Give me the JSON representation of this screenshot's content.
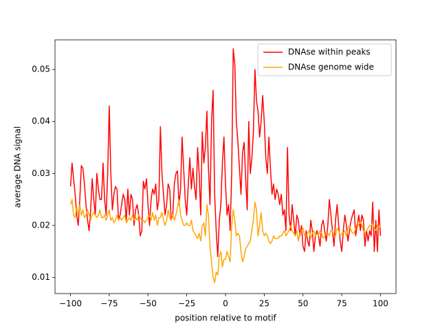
{
  "chart_data": {
    "type": "line",
    "x_label": "position relative to motif",
    "y_label": "average DNA signal",
    "xlim": [
      -110,
      110
    ],
    "ylim": [
      0.0069,
      0.0557
    ],
    "xticks": [
      {
        "value": -100,
        "label": "−100"
      },
      {
        "value": -75,
        "label": "−75"
      },
      {
        "value": -50,
        "label": "−50"
      },
      {
        "value": -25,
        "label": "−25"
      },
      0,
      25,
      50,
      75,
      100
    ],
    "yticks": [
      0.01,
      0.02,
      0.03,
      0.04,
      0.05
    ],
    "legend": "upper right",
    "x": [
      -100,
      -99,
      -98,
      -97,
      -96,
      -95,
      -94,
      -93,
      -92,
      -91,
      -90,
      -89,
      -88,
      -87,
      -86,
      -85,
      -84,
      -83,
      -82,
      -81,
      -80,
      -79,
      -78,
      -77,
      -76,
      -75,
      -74,
      -73,
      -72,
      -71,
      -70,
      -69,
      -68,
      -67,
      -66,
      -65,
      -64,
      -63,
      -62,
      -61,
      -60,
      -59,
      -58,
      -57,
      -56,
      -55,
      -54,
      -53,
      -52,
      -51,
      -50,
      -49,
      -48,
      -47,
      -46,
      -45,
      -44,
      -43,
      -42,
      -41,
      -40,
      -39,
      -38,
      -37,
      -36,
      -35,
      -34,
      -33,
      -32,
      -31,
      -30,
      -29,
      -28,
      -27,
      -26,
      -25,
      -24,
      -23,
      -22,
      -21,
      -20,
      -19,
      -18,
      -17,
      -16,
      -15,
      -14,
      -13,
      -12,
      -11,
      -10,
      -9,
      -8,
      -7,
      -6,
      -5,
      -4,
      -3,
      -2,
      -1,
      0,
      1,
      2,
      3,
      4,
      5,
      6,
      7,
      8,
      9,
      10,
      11,
      12,
      13,
      14,
      15,
      16,
      17,
      18,
      19,
      20,
      21,
      22,
      23,
      24,
      25,
      26,
      27,
      28,
      29,
      30,
      31,
      32,
      33,
      34,
      35,
      36,
      37,
      38,
      39,
      40,
      41,
      42,
      43,
      44,
      45,
      46,
      47,
      48,
      49,
      50,
      51,
      52,
      53,
      54,
      55,
      56,
      57,
      58,
      59,
      60,
      61,
      62,
      63,
      64,
      65,
      66,
      67,
      68,
      69,
      70,
      71,
      72,
      73,
      74,
      75,
      76,
      77,
      78,
      79,
      80,
      81,
      82,
      83,
      84,
      85,
      86,
      87,
      88,
      89,
      90,
      91,
      92,
      93,
      94,
      95,
      96,
      97,
      98,
      99,
      100
    ],
    "series": [
      {
        "name": "DNAse within peaks",
        "color": "#ff0000",
        "values": [
          0.0275,
          0.032,
          0.029,
          0.026,
          0.022,
          0.02,
          0.025,
          0.0315,
          0.031,
          0.028,
          0.024,
          0.021,
          0.019,
          0.023,
          0.029,
          0.025,
          0.022,
          0.03,
          0.027,
          0.025,
          0.025,
          0.032,
          0.025,
          0.022,
          0.03,
          0.043,
          0.03,
          0.023,
          0.026,
          0.0275,
          0.027,
          0.021,
          0.022,
          0.024,
          0.026,
          0.025,
          0.021,
          0.027,
          0.022,
          0.026,
          0.025,
          0.02,
          0.023,
          0.024,
          0.022,
          0.018,
          0.019,
          0.0285,
          0.027,
          0.029,
          0.024,
          0.02,
          0.025,
          0.027,
          0.026,
          0.028,
          0.023,
          0.025,
          0.039,
          0.03,
          0.026,
          0.022,
          0.024,
          0.028,
          0.027,
          0.021,
          0.022,
          0.028,
          0.03,
          0.0305,
          0.024,
          0.027,
          0.037,
          0.031,
          0.025,
          0.022,
          0.028,
          0.033,
          0.027,
          0.031,
          0.0275,
          0.025,
          0.035,
          0.03,
          0.022,
          0.038,
          0.032,
          0.035,
          0.042,
          0.031,
          0.024,
          0.04,
          0.046,
          0.026,
          0.019,
          0.014,
          0.021,
          0.024,
          0.032,
          0.037,
          0.028,
          0.022,
          0.024,
          0.019,
          0.03,
          0.054,
          0.051,
          0.04,
          0.036,
          0.031,
          0.026,
          0.034,
          0.036,
          0.029,
          0.023,
          0.04,
          0.03,
          0.033,
          0.038,
          0.05,
          0.044,
          0.042,
          0.037,
          0.04,
          0.045,
          0.04,
          0.033,
          0.03,
          0.037,
          0.031,
          0.026,
          0.028,
          0.025,
          0.027,
          0.026,
          0.024,
          0.026,
          0.022,
          0.023,
          0.019,
          0.035,
          0.022,
          0.019,
          0.024,
          0.021,
          0.018,
          0.022,
          0.021,
          0.018,
          0.02,
          0.016,
          0.015,
          0.019,
          0.017,
          0.016,
          0.021,
          0.019,
          0.015,
          0.018,
          0.019,
          0.018,
          0.016,
          0.02,
          0.021,
          0.019,
          0.017,
          0.02,
          0.025,
          0.022,
          0.019,
          0.016,
          0.021,
          0.024,
          0.02,
          0.017,
          0.015,
          0.019,
          0.022,
          0.02,
          0.017,
          0.019,
          0.021,
          0.022,
          0.023,
          0.018,
          0.02,
          0.022,
          0.019,
          0.022,
          0.021,
          0.016,
          0.019,
          0.017,
          0.019,
          0.018,
          0.0245,
          0.015,
          0.021,
          0.015,
          0.023,
          0.018
        ]
      },
      {
        "name": "DNAse genome wide",
        "color": "#ffa500",
        "values": [
          0.024,
          0.025,
          0.022,
          0.0215,
          0.0235,
          0.022,
          0.024,
          0.022,
          0.023,
          0.0215,
          0.022,
          0.023,
          0.022,
          0.021,
          0.022,
          0.0225,
          0.022,
          0.0215,
          0.022,
          0.023,
          0.0215,
          0.0215,
          0.022,
          0.021,
          0.022,
          0.023,
          0.021,
          0.0215,
          0.0205,
          0.021,
          0.022,
          0.021,
          0.0215,
          0.021,
          0.0215,
          0.022,
          0.0205,
          0.021,
          0.0215,
          0.021,
          0.022,
          0.021,
          0.0215,
          0.021,
          0.022,
          0.0215,
          0.021,
          0.021,
          0.0205,
          0.021,
          0.0215,
          0.022,
          0.021,
          0.0225,
          0.021,
          0.022,
          0.02,
          0.0215,
          0.0215,
          0.0225,
          0.021,
          0.02,
          0.021,
          0.023,
          0.0215,
          0.021,
          0.022,
          0.021,
          0.022,
          0.0235,
          0.025,
          0.022,
          0.021,
          0.02,
          0.02,
          0.0205,
          0.02,
          0.02,
          0.021,
          0.019,
          0.0185,
          0.018,
          0.0175,
          0.0185,
          0.017,
          0.02,
          0.0205,
          0.018,
          0.024,
          0.022,
          0.016,
          0.013,
          0.01,
          0.009,
          0.011,
          0.0105,
          0.014,
          0.015,
          0.012,
          0.0135,
          0.0135,
          0.015,
          0.014,
          0.013,
          0.02,
          0.023,
          0.021,
          0.018,
          0.0185,
          0.018,
          0.015,
          0.013,
          0.014,
          0.0155,
          0.016,
          0.0165,
          0.017,
          0.019,
          0.021,
          0.0245,
          0.023,
          0.018,
          0.02,
          0.0225,
          0.019,
          0.018,
          0.0185,
          0.018,
          0.017,
          0.0165,
          0.017,
          0.018,
          0.0175,
          0.0175,
          0.0175,
          0.018,
          0.018,
          0.0185,
          0.019,
          0.018,
          0.0185,
          0.019,
          0.02,
          0.019,
          0.0185,
          0.018,
          0.019,
          0.017,
          0.0185,
          0.019,
          0.0195,
          0.018,
          0.018,
          0.0185,
          0.019,
          0.0175,
          0.0185,
          0.019,
          0.018,
          0.0185,
          0.018,
          0.019,
          0.0185,
          0.0175,
          0.018,
          0.0185,
          0.0185,
          0.018,
          0.019,
          0.019,
          0.018,
          0.018,
          0.0195,
          0.019,
          0.018,
          0.0185,
          0.0185,
          0.019,
          0.018,
          0.0195,
          0.02,
          0.019,
          0.0185,
          0.0185,
          0.0195,
          0.0205,
          0.02,
          0.021,
          0.02,
          0.019,
          0.0185,
          0.019,
          0.0195,
          0.02,
          0.02,
          0.0205,
          0.0195,
          0.019,
          0.02,
          0.0195,
          0.02
        ]
      }
    ]
  }
}
